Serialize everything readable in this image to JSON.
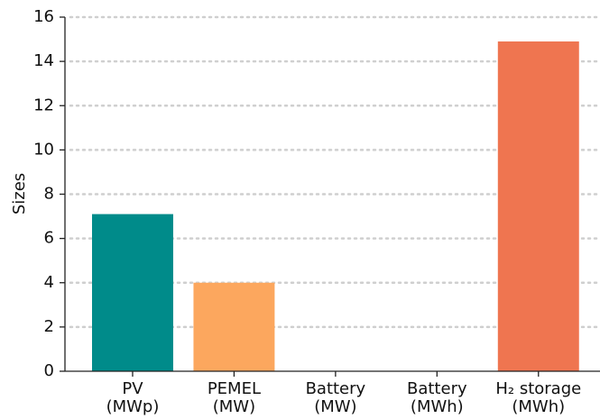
{
  "chart_data": {
    "type": "bar",
    "ylabel": "Sizes",
    "categories": [
      "PV\n(MWp)",
      "PEMEL\n(MW)",
      "Battery\n(MW)",
      "Battery\n(MWh)",
      "H₂ storage\n(MWh)"
    ],
    "values": [
      7.1,
      4.0,
      0,
      0,
      14.9
    ],
    "colors": [
      "#008b8a",
      "#fca75e",
      "#fca75e",
      "#ef7550",
      "#ef7550"
    ],
    "ylim": [
      0,
      16
    ],
    "yticks": [
      0,
      2,
      4,
      6,
      8,
      10,
      12,
      14,
      16
    ],
    "grid": true
  }
}
